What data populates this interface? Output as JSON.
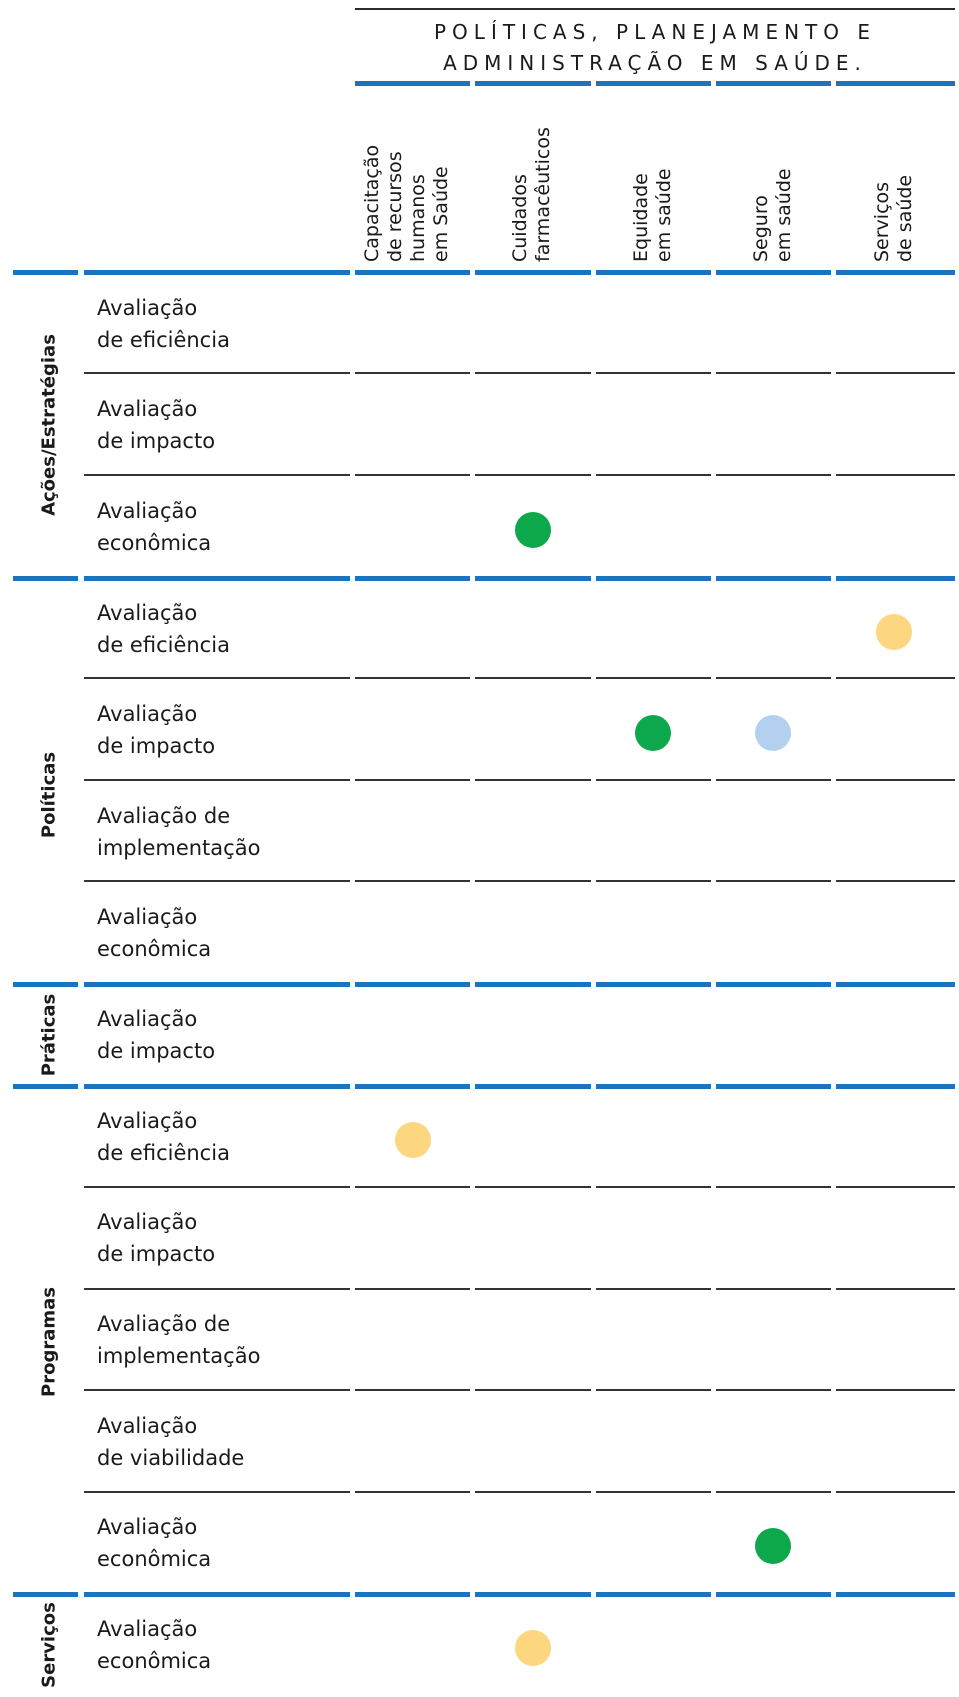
{
  "header": {
    "title_line1": "POLÍTICAS, PLANEJAMENTO E",
    "title_line2": "ADMINISTRAÇÃO EM SAÚDE."
  },
  "columns": [
    {
      "label": "Capacitação\nde recursos\nhumanos\nem Saúde"
    },
    {
      "label": "Cuidados\nfarmacêuticos"
    },
    {
      "label": "Equidade\nem saúde"
    },
    {
      "label": "Seguro\nem saúde"
    },
    {
      "label": "Serviços\nde saúde"
    }
  ],
  "groups": [
    {
      "label": "Ações/Estratégias"
    },
    {
      "label": "Políticas"
    },
    {
      "label": "Práticas"
    },
    {
      "label": "Programas"
    },
    {
      "label": "Serviços"
    }
  ],
  "rows": [
    {
      "label": "Avaliação\nde eficiência"
    },
    {
      "label": "Avaliação\nde impacto"
    },
    {
      "label": "Avaliação\neconômica"
    },
    {
      "label": "Avaliação\nde eficiência"
    },
    {
      "label": "Avaliação\nde impacto"
    },
    {
      "label": "Avaliação de\nimplementação"
    },
    {
      "label": "Avaliação\neconômica"
    },
    {
      "label": "Avaliação\nde impacto"
    },
    {
      "label": "Avaliação\nde eficiência"
    },
    {
      "label": "Avaliação\nde impacto"
    },
    {
      "label": "Avaliação de\nimplementação"
    },
    {
      "label": "Avaliação\nde viabilidade"
    },
    {
      "label": "Avaliação\neconômica"
    },
    {
      "label": "Avaliação\neconômica"
    }
  ],
  "colors": {
    "blue_rule": "#1b74bc",
    "green": "#0ca84b",
    "yellow": "#fcd77f",
    "light_blue": "#b3d1ef"
  },
  "marks": [
    {
      "row": 2,
      "col": 1,
      "color": "green"
    },
    {
      "row": 3,
      "col": 4,
      "color": "yellow"
    },
    {
      "row": 4,
      "col": 2,
      "color": "green"
    },
    {
      "row": 4,
      "col": 3,
      "color": "light_blue"
    },
    {
      "row": 8,
      "col": 0,
      "color": "yellow"
    },
    {
      "row": 12,
      "col": 3,
      "color": "green"
    },
    {
      "row": 13,
      "col": 1,
      "color": "yellow"
    }
  ]
}
